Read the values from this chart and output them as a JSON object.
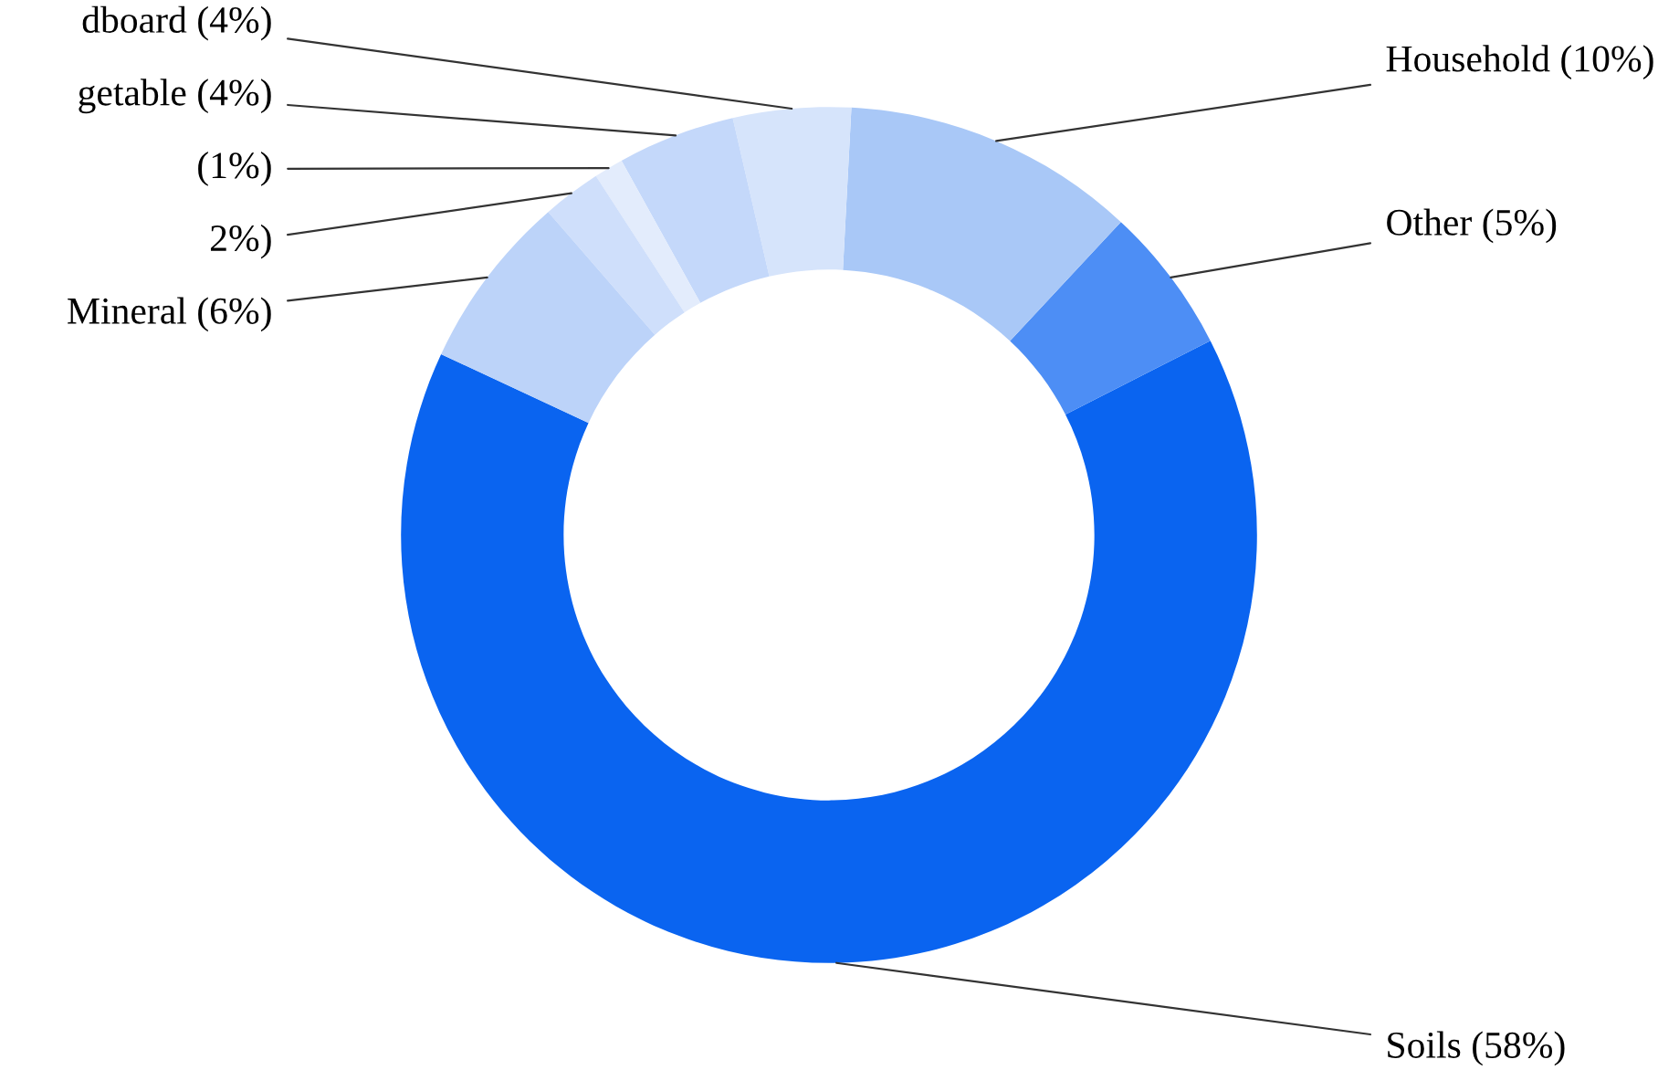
{
  "chart_data": {
    "type": "donut",
    "categories": [
      "Soils (58%)",
      "Other (5%)",
      "Household (10%)",
      "dboard (4%)",
      "getable (4%)",
      "(1%)",
      "2%)",
      "Mineral (6%)"
    ],
    "values": [
      58,
      5,
      10,
      4,
      4,
      1,
      2,
      6
    ],
    "colors": [
      "#0a64f0",
      "#4d8ef5",
      "#a9c8f7",
      "#d6e4fb",
      "#c4d8fa",
      "#e3ecfc",
      "#cfdffb",
      "#bcd3f9"
    ],
    "legend": false
  }
}
